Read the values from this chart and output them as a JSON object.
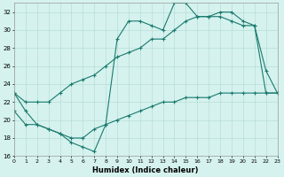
{
  "xlabel": "Humidex (Indice chaleur)",
  "bg_color": "#d5f2ee",
  "grid_color": "#b8ddd8",
  "line_color": "#1a7a6e",
  "x_min": 0,
  "x_max": 23,
  "y_min": 16,
  "y_max": 33,
  "yticks": [
    16,
    18,
    20,
    22,
    24,
    26,
    28,
    30,
    32
  ],
  "xticks": [
    0,
    1,
    2,
    3,
    4,
    5,
    6,
    7,
    8,
    9,
    10,
    11,
    12,
    13,
    14,
    15,
    16,
    17,
    18,
    19,
    20,
    21,
    22,
    23
  ],
  "curve_top_x": [
    0,
    1,
    2,
    3,
    4,
    5,
    6,
    7,
    8,
    9,
    10,
    11,
    12,
    13,
    14,
    15,
    16,
    17,
    18,
    19,
    20,
    21,
    22,
    23
  ],
  "curve_top_y": [
    23,
    22,
    22,
    22,
    23,
    24,
    24.5,
    25,
    26,
    27,
    27.5,
    28,
    29,
    29,
    30,
    31,
    31.5,
    31.5,
    32,
    32,
    31,
    30.5,
    23,
    23
  ],
  "curve_mid_x": [
    0,
    1,
    2,
    3,
    4,
    5,
    6,
    7,
    8,
    9,
    10,
    11,
    12,
    13,
    14,
    15,
    16,
    17,
    18,
    19,
    20,
    21,
    22,
    23
  ],
  "curve_mid_y": [
    23,
    21,
    19.5,
    19,
    18.5,
    17.5,
    17,
    16.5,
    19.5,
    29,
    31,
    31,
    30.5,
    30,
    33,
    33,
    31.5,
    31.5,
    31.5,
    31,
    30.5,
    30.5,
    25.5,
    23
  ],
  "curve_bot_x": [
    0,
    1,
    2,
    3,
    4,
    5,
    6,
    7,
    8,
    9,
    10,
    11,
    12,
    13,
    14,
    15,
    16,
    17,
    18,
    19,
    20,
    21,
    22,
    23
  ],
  "curve_bot_y": [
    21,
    19.5,
    19.5,
    19,
    18.5,
    18,
    18,
    19,
    19.5,
    20,
    20.5,
    21,
    21.5,
    22,
    22,
    22.5,
    22.5,
    22.5,
    23,
    23,
    23,
    23,
    23,
    23
  ]
}
